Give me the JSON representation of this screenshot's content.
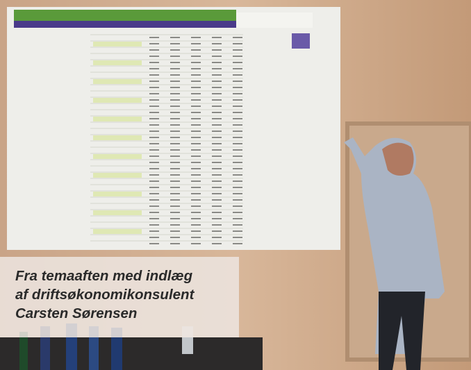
{
  "caption": {
    "lines": [
      "Fra temaaften med indlæg",
      "af driftsøkonomikonsulent",
      "Carsten Sørensen"
    ]
  }
}
